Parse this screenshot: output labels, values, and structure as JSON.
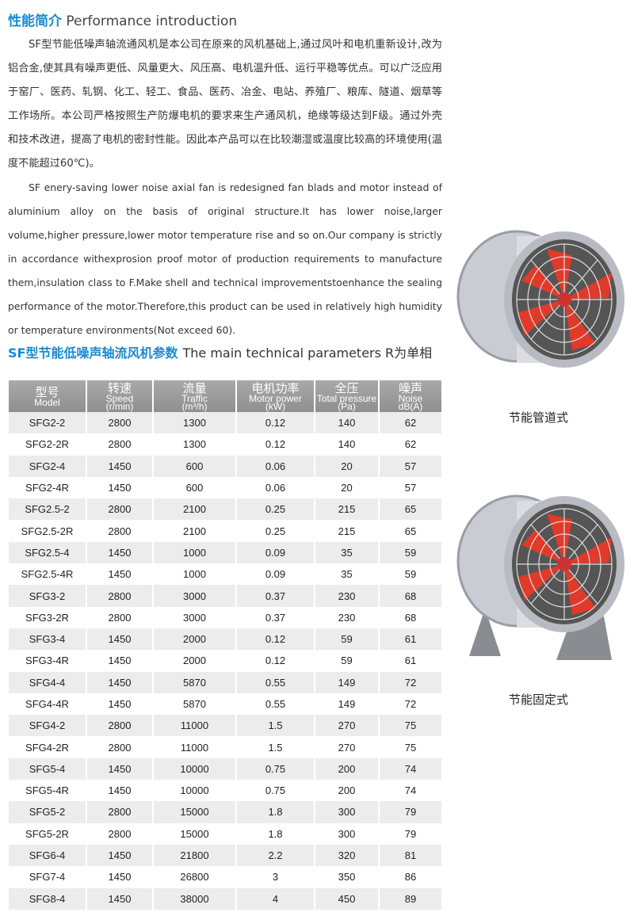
{
  "intro": {
    "title_cn": "性能简介",
    "title_en": "Performance introduction",
    "para_cn": "SF型节能低噪声轴流通风机是本公司在原来的风机基础上,通过风叶和电机重新设计,改为铝合金,使其具有噪声更低、风量更大、风压高、电机温升低、运行平稳等优点。可以广泛应用于窑厂、医药、轧钢、化工、轻工、食品、医药、冶金、电站、养殖厂、粮库、隧道、烟草等工作场所。本公司严格按照生产防爆电机的要求来生产通风机，绝缘等级达到F级。通过外壳和技术改进，提高了电机的密封性能。因此本产品可以在比较潮湿或温度比较高的环境使用(温度不能超过60℃)。",
    "para_en": "SF enery-saving lower noise axial fan is redesigned fan blads and motor instead of aluminium alloy on the basis of original structure.It has lower noise,larger volume,higher pressure,lower motor temperature rise and so on.Our company is strictly in accordance withexprosion proof motor of production requirements to manufacture them,insulation class to F.Make shell and technical improvementstoenhance the sealing performance of the motor.Therefore,this product can be used in relatively high humidity or temperature environments(Not exceed 60)."
  },
  "params": {
    "title_cn": "SF型节能低噪声轴流风机参数",
    "title_en": "The main technical parameters R为单相",
    "headers": [
      {
        "cn": "型号",
        "en": "Model",
        "unit": ""
      },
      {
        "cn": "转速",
        "en": "Speed",
        "unit": "(r/min)"
      },
      {
        "cn": "流量",
        "en": "Traffic",
        "unit": "(m³/h)"
      },
      {
        "cn": "电机功率",
        "en": "Motor power",
        "unit": "(kW)"
      },
      {
        "cn": "全压",
        "en": "Total pressure",
        "unit": "(Pa)"
      },
      {
        "cn": "噪声",
        "en": "Noise",
        "unit": "dB(A)"
      }
    ],
    "rows": [
      [
        "SFG2-2",
        "2800",
        "1300",
        "0.12",
        "140",
        "62"
      ],
      [
        "SFG2-2R",
        "2800",
        "1300",
        "0.12",
        "140",
        "62"
      ],
      [
        "SFG2-4",
        "1450",
        "600",
        "0.06",
        "20",
        "57"
      ],
      [
        "SFG2-4R",
        "1450",
        "600",
        "0.06",
        "20",
        "57"
      ],
      [
        "SFG2.5-2",
        "2800",
        "2100",
        "0.25",
        "215",
        "65"
      ],
      [
        "SFG2.5-2R",
        "2800",
        "2100",
        "0.25",
        "215",
        "65"
      ],
      [
        "SFG2.5-4",
        "1450",
        "1000",
        "0.09",
        "35",
        "59"
      ],
      [
        "SFG2.5-4R",
        "1450",
        "1000",
        "0.09",
        "35",
        "59"
      ],
      [
        "SFG3-2",
        "2800",
        "3000",
        "0.37",
        "230",
        "68"
      ],
      [
        "SFG3-2R",
        "2800",
        "3000",
        "0.37",
        "230",
        "68"
      ],
      [
        "SFG3-4",
        "1450",
        "2000",
        "0.12",
        "59",
        "61"
      ],
      [
        "SFG3-4R",
        "1450",
        "2000",
        "0.12",
        "59",
        "61"
      ],
      [
        "SFG4-4",
        "1450",
        "5870",
        "0.55",
        "149",
        "72"
      ],
      [
        "SFG4-4R",
        "1450",
        "5870",
        "0.55",
        "149",
        "72"
      ],
      [
        "SFG4-2",
        "2800",
        "11000",
        "1.5",
        "270",
        "75"
      ],
      [
        "SFG4-2R",
        "2800",
        "11000",
        "1.5",
        "270",
        "75"
      ],
      [
        "SFG5-4",
        "1450",
        "10000",
        "0.75",
        "200",
        "74"
      ],
      [
        "SFG5-4R",
        "1450",
        "10000",
        "0.75",
        "200",
        "74"
      ],
      [
        "SFG5-2",
        "2800",
        "15000",
        "1.8",
        "300",
        "79"
      ],
      [
        "SFG5-2R",
        "2800",
        "15000",
        "1.8",
        "300",
        "79"
      ],
      [
        "SFG6-4",
        "1450",
        "21800",
        "2.2",
        "320",
        "81"
      ],
      [
        "SFG7-4",
        "1450",
        "26800",
        "3",
        "350",
        "86"
      ],
      [
        "SFG8-4",
        "1450",
        "38000",
        "4",
        "450",
        "89"
      ]
    ]
  },
  "products": [
    {
      "caption": "节能管道式"
    },
    {
      "caption": "节能固定式"
    }
  ],
  "colors": {
    "accent": "#1a8ad0",
    "header_bg": "#9a9a9a",
    "row_alt": "#ececec",
    "blade": "#e03a2a"
  }
}
